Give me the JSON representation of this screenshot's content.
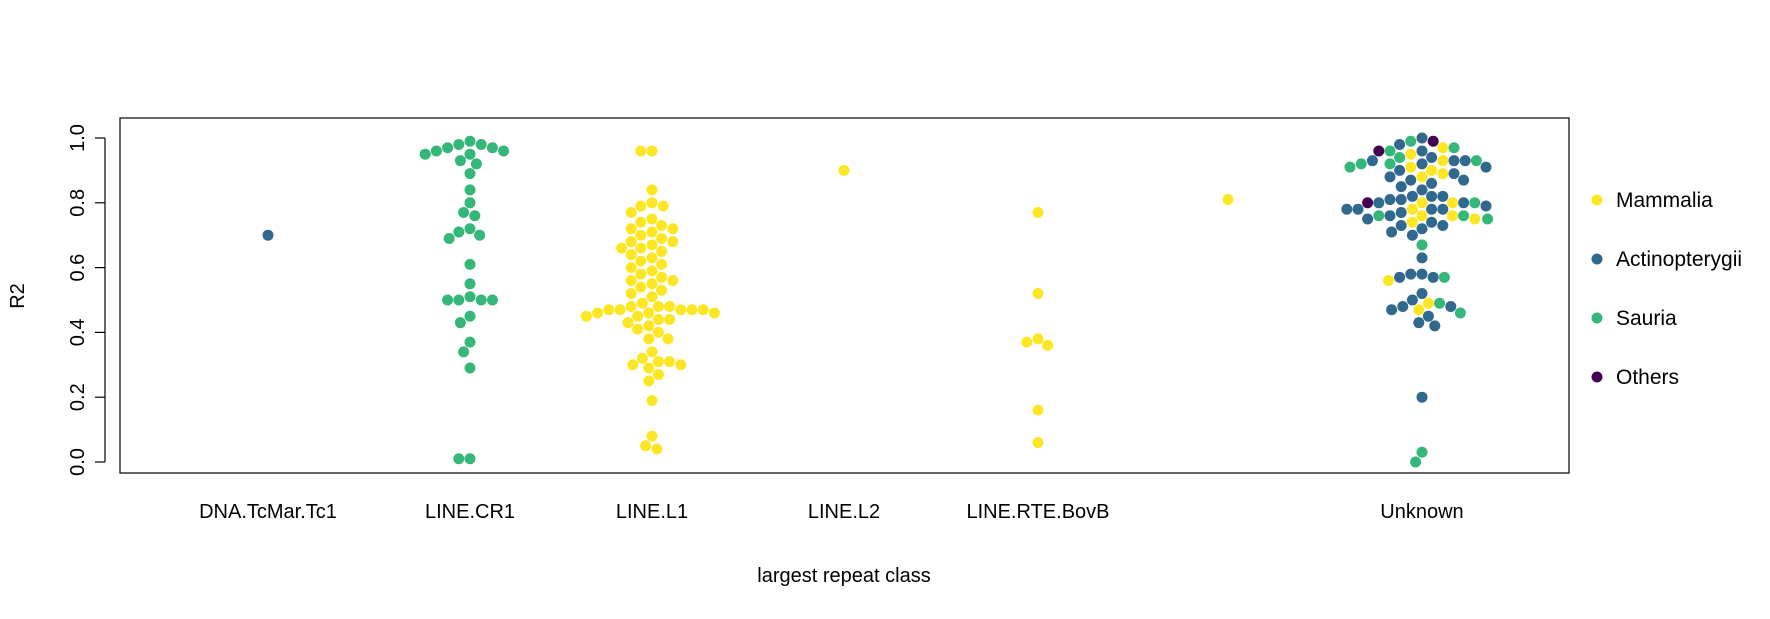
{
  "chart_data": {
    "type": "scatter",
    "xlabel": "largest repeat class",
    "ylabel": "R2",
    "ylim": [
      0.0,
      1.0
    ],
    "y_ticks": [
      "0.0",
      "0.2",
      "0.4",
      "0.6",
      "0.8",
      "1.0"
    ],
    "categories": [
      "DNA.TcMar.Tc1",
      "LINE.CR1",
      "LINE.L1",
      "LINE.L2",
      "LINE.RTE.BovB",
      "",
      "Unknown"
    ],
    "grid": false,
    "legend_position": "right",
    "series": [
      {
        "name": "Mammalia",
        "color": "#FDE725",
        "points": [
          {
            "category": "LINE.L1",
            "values": [
              0.96,
              0.96,
              0.84,
              0.8,
              0.79,
              0.79,
              0.77,
              0.75,
              0.74,
              0.73,
              0.72,
              0.72,
              0.71,
              0.7,
              0.69,
              0.68,
              0.68,
              0.67,
              0.66,
              0.66,
              0.65,
              0.64,
              0.63,
              0.62,
              0.61,
              0.6,
              0.59,
              0.58,
              0.57,
              0.56,
              0.56,
              0.55,
              0.54,
              0.53,
              0.52,
              0.51,
              0.49,
              0.48,
              0.48,
              0.48,
              0.47,
              0.47,
              0.47,
              0.47,
              0.47,
              0.46,
              0.46,
              0.46,
              0.45,
              0.45,
              0.44,
              0.44,
              0.43,
              0.42,
              0.41,
              0.4,
              0.38,
              0.38,
              0.34,
              0.32,
              0.31,
              0.31,
              0.3,
              0.3,
              0.29,
              0.27,
              0.25,
              0.19,
              0.08,
              0.05,
              0.04
            ]
          },
          {
            "category": "LINE.L2",
            "values": [
              0.9
            ]
          },
          {
            "category": "LINE.RTE.BovB",
            "values": [
              0.77,
              0.52,
              0.38,
              0.37,
              0.36,
              0.16,
              0.06
            ]
          },
          {
            "category": "",
            "values": [
              0.81
            ]
          },
          {
            "category": "Unknown",
            "values": [
              0.97,
              0.95,
              0.93,
              0.91,
              0.9,
              0.89,
              0.88,
              0.8,
              0.8,
              0.78,
              0.76,
              0.76,
              0.75,
              0.74,
              0.56,
              0.49,
              0.47
            ]
          }
        ]
      },
      {
        "name": "Actinopterygii",
        "color": "#31688E",
        "points": [
          {
            "category": "DNA.TcMar.Tc1",
            "values": [
              0.7
            ]
          },
          {
            "category": "Unknown",
            "values": [
              1.0,
              0.98,
              0.96,
              0.94,
              0.93,
              0.93,
              0.93,
              0.92,
              0.91,
              0.9,
              0.89,
              0.88,
              0.87,
              0.87,
              0.86,
              0.85,
              0.84,
              0.82,
              0.82,
              0.82,
              0.81,
              0.81,
              0.8,
              0.8,
              0.79,
              0.78,
              0.78,
              0.78,
              0.78,
              0.77,
              0.76,
              0.75,
              0.74,
              0.73,
              0.73,
              0.72,
              0.71,
              0.7,
              0.63,
              0.58,
              0.58,
              0.57,
              0.57,
              0.52,
              0.5,
              0.48,
              0.48,
              0.47,
              0.45,
              0.43,
              0.42,
              0.2
            ]
          }
        ]
      },
      {
        "name": "Sauria",
        "color": "#35B779",
        "points": [
          {
            "category": "LINE.CR1",
            "values": [
              0.99,
              0.98,
              0.98,
              0.97,
              0.97,
              0.96,
              0.96,
              0.95,
              0.95,
              0.93,
              0.92,
              0.89,
              0.84,
              0.8,
              0.77,
              0.76,
              0.72,
              0.71,
              0.7,
              0.69,
              0.61,
              0.55,
              0.51,
              0.5,
              0.5,
              0.5,
              0.5,
              0.45,
              0.43,
              0.37,
              0.34,
              0.29,
              0.01,
              0.01
            ]
          },
          {
            "category": "Unknown",
            "values": [
              0.99,
              0.97,
              0.96,
              0.94,
              0.93,
              0.92,
              0.92,
              0.91,
              0.8,
              0.76,
              0.76,
              0.75,
              0.67,
              0.57,
              0.49,
              0.46,
              0.03,
              0.0
            ]
          }
        ]
      },
      {
        "name": "Others",
        "color": "#440154",
        "points": [
          {
            "category": "Unknown",
            "values": [
              0.99,
              0.96,
              0.8
            ]
          }
        ]
      }
    ]
  }
}
